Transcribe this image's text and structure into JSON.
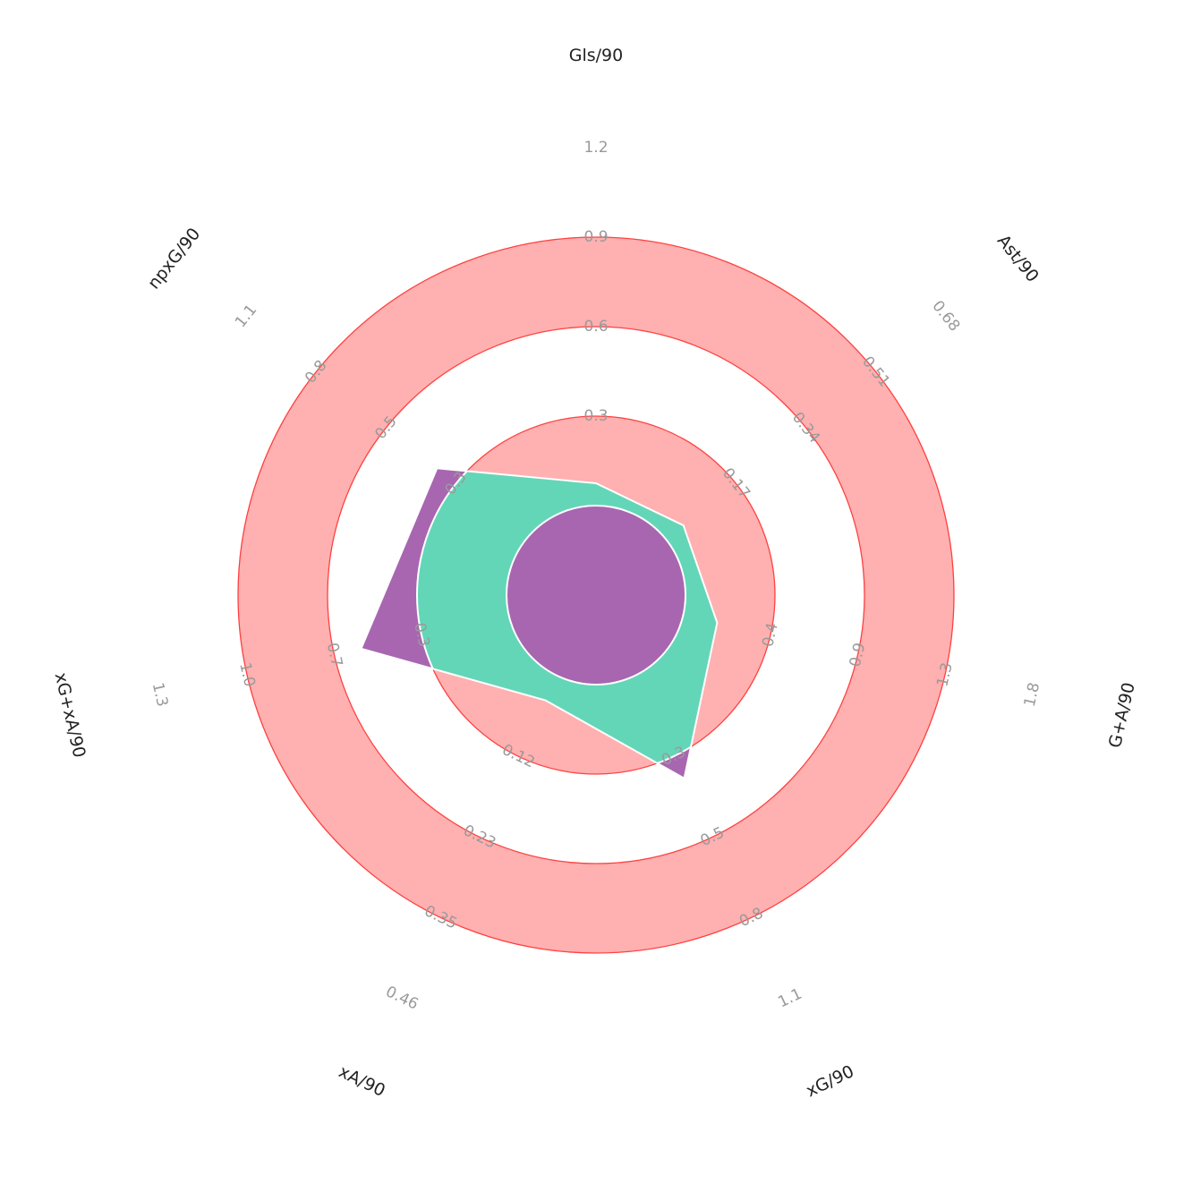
{
  "chart_data": {
    "type": "radar",
    "title": "",
    "params": [
      "Gls/90",
      "Ast/90",
      "G+A/90",
      "xG/90",
      "xA/90",
      "xG+xA/90",
      "npxG/90"
    ],
    "ticks": [
      [
        "0.3",
        "0.6",
        "0.9",
        "1.2"
      ],
      [
        "0.17",
        "0.34",
        "0.51",
        "0.68"
      ],
      [
        "0.4",
        "0.9",
        "1.3",
        "1.8"
      ],
      [
        "0.3",
        "0.5",
        "0.8",
        "1.1"
      ],
      [
        "0.12",
        "0.23",
        "0.35",
        "0.46"
      ],
      [
        "0.3",
        "0.7",
        "1.0",
        "1.3"
      ],
      [
        "0.3",
        "0.5",
        "0.8",
        "1.1"
      ]
    ],
    "value_ranges": [
      [
        0.0,
        1.2
      ],
      [
        0.0,
        0.68
      ],
      [
        0.0,
        1.8
      ],
      [
        0.0,
        1.1
      ],
      [
        0.0,
        0.46
      ],
      [
        0.0,
        1.3
      ],
      [
        0.0,
        1.1
      ]
    ],
    "values": [
      0.3,
      0.17,
      0.5,
      0.5,
      0.12,
      0.7,
      0.5
    ],
    "colors": {
      "ring_fill": "#ffb0b0",
      "ring_edge": "#ff4040",
      "radar_fill": "#a866b1",
      "radar_edge": "#ffffff",
      "inner_fill": "#63d6b8",
      "background": "#ffffff"
    }
  }
}
